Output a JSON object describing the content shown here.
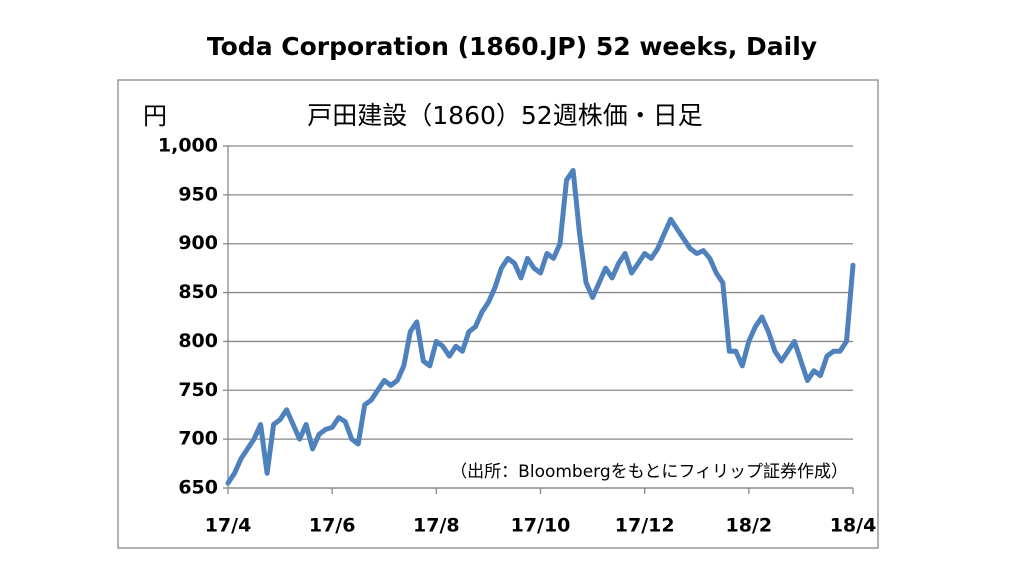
{
  "chart_data": {
    "type": "line",
    "title": "Toda Corporation (1860.JP) 52 weeks, Daily",
    "subtitle": "戸田建設（1860）52週株価・日足",
    "y_label": "円",
    "annotation": "（出所：Bloombergをもとにフィリップ証券作成）",
    "categories": [
      "17/4",
      null,
      null,
      null,
      null,
      null,
      null,
      null,
      null,
      null,
      null,
      null,
      null,
      null,
      null,
      null,
      "17/6",
      null,
      null,
      null,
      null,
      null,
      null,
      null,
      null,
      null,
      null,
      null,
      null,
      null,
      null,
      null,
      "17/8",
      null,
      null,
      null,
      null,
      null,
      null,
      null,
      null,
      null,
      null,
      null,
      null,
      null,
      null,
      null,
      "17/10",
      null,
      null,
      null,
      null,
      null,
      null,
      null,
      null,
      null,
      null,
      null,
      null,
      null,
      null,
      null,
      "17/12",
      null,
      null,
      null,
      null,
      null,
      null,
      null,
      null,
      null,
      null,
      null,
      null,
      null,
      null,
      null,
      "18/2",
      null,
      null,
      null,
      null,
      null,
      null,
      null,
      null,
      null,
      null,
      null,
      null,
      null,
      null,
      null,
      "18/4"
    ],
    "series": [
      {
        "name": "戸田建設",
        "color": "#4f81bd",
        "values": [
          655,
          665,
          680,
          690,
          700,
          715,
          665,
          715,
          720,
          730,
          715,
          700,
          715,
          690,
          705,
          710,
          712,
          722,
          718,
          700,
          695,
          735,
          740,
          750,
          760,
          755,
          760,
          775,
          810,
          820,
          780,
          775,
          800,
          795,
          785,
          795,
          790,
          810,
          815,
          830,
          840,
          855,
          875,
          885,
          880,
          865,
          885,
          875,
          870,
          890,
          885,
          900,
          965,
          975,
          910,
          860,
          845,
          860,
          875,
          865,
          880,
          890,
          870,
          880,
          890,
          885,
          895,
          910,
          925,
          915,
          905,
          895,
          890,
          893,
          885,
          870,
          860,
          790,
          790,
          775,
          800,
          815,
          825,
          810,
          790,
          780,
          790,
          800,
          780,
          760,
          770,
          765,
          785,
          790,
          790,
          800,
          878
        ]
      }
    ],
    "ylim": [
      650,
      1000
    ],
    "yticks": [
      650,
      700,
      750,
      800,
      850,
      900,
      950,
      {
        "value": 1000,
        "label": "1,000"
      }
    ],
    "grid": true
  }
}
